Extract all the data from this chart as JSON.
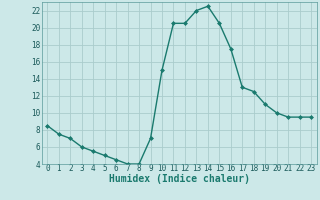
{
  "x": [
    0,
    1,
    2,
    3,
    4,
    5,
    6,
    7,
    8,
    9,
    10,
    11,
    12,
    13,
    14,
    15,
    16,
    17,
    18,
    19,
    20,
    21,
    22,
    23
  ],
  "y": [
    8.5,
    7.5,
    7.0,
    6.0,
    5.5,
    5.0,
    4.5,
    4.0,
    4.0,
    7.0,
    15.0,
    20.5,
    20.5,
    22.0,
    22.5,
    20.5,
    17.5,
    13.0,
    12.5,
    11.0,
    10.0,
    9.5,
    9.5,
    9.5
  ],
  "line_color": "#1a7a6e",
  "marker": "D",
  "marker_size": 2.0,
  "bg_color": "#cce8e8",
  "grid_color": "#aacccc",
  "xlabel": "Humidex (Indice chaleur)",
  "ylim": [
    4,
    23
  ],
  "xlim": [
    -0.5,
    23.5
  ],
  "yticks": [
    4,
    6,
    8,
    10,
    12,
    14,
    16,
    18,
    20,
    22
  ],
  "xticks": [
    0,
    1,
    2,
    3,
    4,
    5,
    6,
    7,
    8,
    9,
    10,
    11,
    12,
    13,
    14,
    15,
    16,
    17,
    18,
    19,
    20,
    21,
    22,
    23
  ],
  "xlabel_fontsize": 7.0,
  "tick_fontsize": 5.5,
  "line_width": 1.0
}
